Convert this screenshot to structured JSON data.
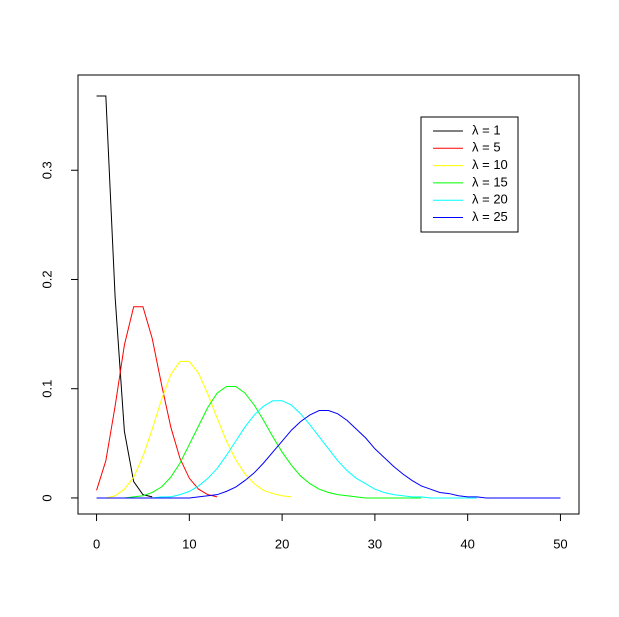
{
  "chart_data": {
    "type": "line",
    "x": [
      0,
      1,
      2,
      3,
      4,
      5,
      6,
      7,
      8,
      9,
      10,
      11,
      12,
      13,
      14,
      15,
      16,
      17,
      18,
      19,
      20,
      21,
      22,
      23,
      24,
      25,
      26,
      27,
      28,
      29,
      30,
      31,
      32,
      33,
      34,
      35,
      36,
      37,
      38,
      39,
      40,
      41,
      42,
      43,
      44,
      45,
      46,
      47,
      48,
      49,
      50
    ],
    "series": [
      {
        "name": "λ = 1",
        "color": "#000000",
        "values": [
          0.368,
          0.368,
          0.184,
          0.061,
          0.015,
          0.003,
          0.001,
          null,
          null,
          null,
          null,
          null,
          null,
          null,
          null,
          null,
          null,
          null,
          null,
          null,
          null,
          null,
          null,
          null,
          null,
          null,
          null,
          null,
          null,
          null,
          null,
          null,
          null,
          null,
          null,
          null,
          null,
          null,
          null,
          null,
          null,
          null,
          null,
          null,
          null,
          null,
          null,
          null,
          null,
          null,
          null
        ]
      },
      {
        "name": "λ = 5",
        "color": "#ff0000",
        "values": [
          0.007,
          0.034,
          0.084,
          0.14,
          0.175,
          0.175,
          0.146,
          0.104,
          0.065,
          0.036,
          0.018,
          0.008,
          0.003,
          0.001,
          null,
          null,
          null,
          null,
          null,
          null,
          null,
          null,
          null,
          null,
          null,
          null,
          null,
          null,
          null,
          null,
          null,
          null,
          null,
          null,
          null,
          null,
          null,
          null,
          null,
          null,
          null,
          null,
          null,
          null,
          null,
          null,
          null,
          null,
          null,
          null,
          null
        ]
      },
      {
        "name": "λ = 10",
        "color": "#ffff00",
        "values": [
          0,
          0,
          0.002,
          0.008,
          0.019,
          0.038,
          0.063,
          0.09,
          0.113,
          0.125,
          0.125,
          0.114,
          0.095,
          0.073,
          0.052,
          0.035,
          0.022,
          0.013,
          0.007,
          0.004,
          0.002,
          0.001,
          null,
          null,
          null,
          null,
          null,
          null,
          null,
          null,
          null,
          null,
          null,
          null,
          null,
          null,
          null,
          null,
          null,
          null,
          null,
          null,
          null,
          null,
          null,
          null,
          null,
          null,
          null,
          null,
          null
        ]
      },
      {
        "name": "λ = 15",
        "color": "#00ff00",
        "values": [
          0,
          0,
          0,
          0,
          0.001,
          0.002,
          0.005,
          0.01,
          0.019,
          0.032,
          0.049,
          0.066,
          0.083,
          0.096,
          0.102,
          0.102,
          0.096,
          0.085,
          0.071,
          0.056,
          0.042,
          0.03,
          0.02,
          0.013,
          0.008,
          0.005,
          0.003,
          0.002,
          0.001,
          0,
          0,
          0,
          0,
          0,
          0,
          0,
          null,
          null,
          null,
          null,
          null,
          null,
          null,
          null,
          null,
          null,
          null,
          null,
          null,
          null,
          null
        ]
      },
      {
        "name": "λ = 20",
        "color": "#00ffff",
        "values": [
          0,
          0,
          0,
          0,
          0,
          0,
          0,
          0.001,
          0.001,
          0.003,
          0.006,
          0.011,
          0.018,
          0.027,
          0.039,
          0.052,
          0.065,
          0.076,
          0.084,
          0.089,
          0.089,
          0.085,
          0.077,
          0.067,
          0.056,
          0.045,
          0.034,
          0.025,
          0.018,
          0.013,
          0.008,
          0.005,
          0.003,
          0.002,
          0.001,
          0.001,
          0,
          0,
          0,
          0,
          0,
          0,
          null,
          null,
          null,
          null,
          null,
          null,
          null,
          null,
          null
        ]
      },
      {
        "name": "λ = 25",
        "color": "#0000ff",
        "values": [
          0,
          0,
          0,
          0,
          0,
          0,
          0,
          0,
          0,
          0,
          0,
          0.001,
          0.002,
          0.003,
          0.006,
          0.01,
          0.016,
          0.023,
          0.032,
          0.042,
          0.052,
          0.062,
          0.07,
          0.076,
          0.08,
          0.08,
          0.077,
          0.071,
          0.063,
          0.055,
          0.045,
          0.037,
          0.029,
          0.022,
          0.016,
          0.011,
          0.008,
          0.005,
          0.004,
          0.002,
          0.001,
          0.001,
          0,
          0,
          0,
          0,
          0,
          0,
          0,
          0,
          0
        ]
      }
    ],
    "xlim": [
      -2,
      52
    ],
    "xticks": [
      0,
      10,
      20,
      30,
      40,
      50
    ],
    "ylim": [
      -0.0147,
      0.3872
    ],
    "yticks": [
      0.0,
      0.1,
      0.2,
      0.3
    ],
    "legend": "topright"
  }
}
